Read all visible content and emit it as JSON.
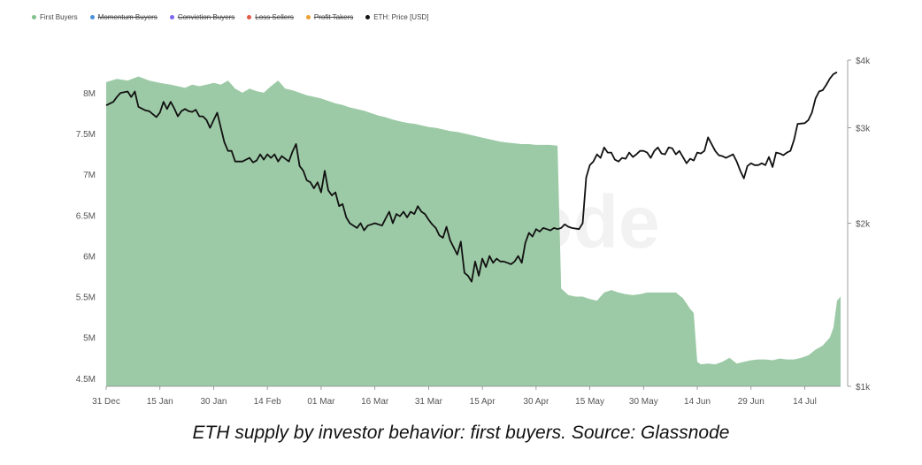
{
  "legend": [
    {
      "label": "First Buyers",
      "color": "#7fc08d",
      "visible": true
    },
    {
      "label": "Momentum Buyers",
      "color": "#4a90d9",
      "visible": false
    },
    {
      "label": "Conviction Buyers",
      "color": "#7b68ee",
      "visible": false
    },
    {
      "label": "Loss Sellers",
      "color": "#e05a47",
      "visible": false
    },
    {
      "label": "Profit Takers",
      "color": "#f0a030",
      "visible": false
    },
    {
      "label": "ETH: Price [USD]",
      "color": "#111111",
      "visible": true
    }
  ],
  "watermark": "glassnode",
  "caption": "ETH supply by investor behavior: first buyers. Source: Glassnode",
  "chart_data": {
    "type": "area",
    "x_ticks": [
      "31 Dec",
      "15 Jan",
      "30 Jan",
      "14 Feb",
      "01 Mar",
      "16 Mar",
      "31 Mar",
      "15 Apr",
      "30 Apr",
      "15 May",
      "30 May",
      "14 Jun",
      "29 Jun",
      "14 Jul"
    ],
    "y_left_ticks": [
      {
        "value": 4.5,
        "label": "4.5M"
      },
      {
        "value": 5,
        "label": "5M"
      },
      {
        "value": 5.5,
        "label": "5.5M"
      },
      {
        "value": 6,
        "label": "6M"
      },
      {
        "value": 6.5,
        "label": "6.5M"
      },
      {
        "value": 7,
        "label": "7M"
      },
      {
        "value": 7.5,
        "label": "7.5M"
      },
      {
        "value": 8,
        "label": "8M"
      }
    ],
    "y_right_ticks": [
      {
        "value": 1000,
        "label": "$1k"
      },
      {
        "value": 2000,
        "label": "$2k"
      },
      {
        "value": 3000,
        "label": "$3k"
      },
      {
        "value": 4000,
        "label": "$4k"
      }
    ],
    "y_left_range": [
      4.4,
      8.4
    ],
    "y_right_range": [
      1000,
      4000
    ],
    "y_right_scale": "log",
    "x_range_days": [
      0,
      205
    ],
    "grid": false,
    "legend_position": "top-left",
    "series": [
      {
        "name": "First Buyers",
        "kind": "area",
        "color": "#9dcaa6",
        "points": [
          [
            0,
            8.13
          ],
          [
            3,
            8.17
          ],
          [
            6,
            8.15
          ],
          [
            9,
            8.2
          ],
          [
            12,
            8.15
          ],
          [
            15,
            8.12
          ],
          [
            18,
            8.1
          ],
          [
            20,
            8.08
          ],
          [
            22,
            8.06
          ],
          [
            24,
            8.1
          ],
          [
            26,
            8.08
          ],
          [
            28,
            8.1
          ],
          [
            30,
            8.12
          ],
          [
            32,
            8.1
          ],
          [
            34,
            8.15
          ],
          [
            36,
            8.05
          ],
          [
            38,
            8.0
          ],
          [
            40,
            8.05
          ],
          [
            42,
            8.02
          ],
          [
            44,
            8.0
          ],
          [
            46,
            8.08
          ],
          [
            48,
            8.15
          ],
          [
            50,
            8.05
          ],
          [
            52,
            8.03
          ],
          [
            54,
            8.0
          ],
          [
            56,
            7.97
          ],
          [
            58,
            7.95
          ],
          [
            60,
            7.93
          ],
          [
            62,
            7.9
          ],
          [
            64,
            7.87
          ],
          [
            66,
            7.85
          ],
          [
            68,
            7.82
          ],
          [
            70,
            7.8
          ],
          [
            72,
            7.78
          ],
          [
            74,
            7.75
          ],
          [
            76,
            7.72
          ],
          [
            78,
            7.7
          ],
          [
            80,
            7.67
          ],
          [
            82,
            7.65
          ],
          [
            84,
            7.63
          ],
          [
            86,
            7.62
          ],
          [
            88,
            7.6
          ],
          [
            90,
            7.58
          ],
          [
            92,
            7.57
          ],
          [
            94,
            7.55
          ],
          [
            96,
            7.53
          ],
          [
            98,
            7.52
          ],
          [
            100,
            7.5
          ],
          [
            102,
            7.48
          ],
          [
            104,
            7.46
          ],
          [
            106,
            7.44
          ],
          [
            108,
            7.42
          ],
          [
            110,
            7.4
          ],
          [
            112,
            7.39
          ],
          [
            114,
            7.38
          ],
          [
            116,
            7.37
          ],
          [
            118,
            7.37
          ],
          [
            120,
            7.36
          ],
          [
            122,
            7.36
          ],
          [
            124,
            7.36
          ],
          [
            126,
            7.35
          ],
          [
            127,
            5.6
          ],
          [
            129,
            5.52
          ],
          [
            131,
            5.5
          ],
          [
            133,
            5.5
          ],
          [
            135,
            5.47
          ],
          [
            137,
            5.45
          ],
          [
            139,
            5.55
          ],
          [
            141,
            5.58
          ],
          [
            143,
            5.55
          ],
          [
            145,
            5.53
          ],
          [
            147,
            5.52
          ],
          [
            149,
            5.53
          ],
          [
            151,
            5.55
          ],
          [
            153,
            5.55
          ],
          [
            155,
            5.55
          ],
          [
            157,
            5.55
          ],
          [
            159,
            5.55
          ],
          [
            161,
            5.48
          ],
          [
            163,
            5.35
          ],
          [
            164,
            5.3
          ],
          [
            165,
            4.7
          ],
          [
            166,
            4.67
          ],
          [
            168,
            4.68
          ],
          [
            170,
            4.67
          ],
          [
            172,
            4.7
          ],
          [
            174,
            4.75
          ],
          [
            176,
            4.68
          ],
          [
            178,
            4.7
          ],
          [
            180,
            4.72
          ],
          [
            182,
            4.73
          ],
          [
            184,
            4.73
          ],
          [
            186,
            4.72
          ],
          [
            188,
            4.74
          ],
          [
            190,
            4.73
          ],
          [
            192,
            4.73
          ],
          [
            194,
            4.75
          ],
          [
            196,
            4.78
          ],
          [
            198,
            4.85
          ],
          [
            200,
            4.9
          ],
          [
            202,
            5.0
          ],
          [
            203,
            5.12
          ],
          [
            204,
            5.45
          ],
          [
            205,
            5.5
          ]
        ]
      },
      {
        "name": "ETH: Price [USD]",
        "kind": "line",
        "color": "#111111",
        "points": [
          [
            0,
            3300
          ],
          [
            2,
            3350
          ],
          [
            3,
            3420
          ],
          [
            4,
            3480
          ],
          [
            6,
            3500
          ],
          [
            7,
            3420
          ],
          [
            8,
            3500
          ],
          [
            9,
            3280
          ],
          [
            11,
            3230
          ],
          [
            12,
            3220
          ],
          [
            13,
            3180
          ],
          [
            14,
            3140
          ],
          [
            15,
            3200
          ],
          [
            16,
            3350
          ],
          [
            17,
            3250
          ],
          [
            18,
            3350
          ],
          [
            19,
            3260
          ],
          [
            20,
            3150
          ],
          [
            21,
            3220
          ],
          [
            22,
            3250
          ],
          [
            23,
            3220
          ],
          [
            24,
            3210
          ],
          [
            25,
            3240
          ],
          [
            26,
            3150
          ],
          [
            27,
            3150
          ],
          [
            28,
            3100
          ],
          [
            29,
            3000
          ],
          [
            30,
            3100
          ],
          [
            31,
            3200
          ],
          [
            32,
            3000
          ],
          [
            33,
            2820
          ],
          [
            34,
            2720
          ],
          [
            35,
            2720
          ],
          [
            36,
            2600
          ],
          [
            38,
            2600
          ],
          [
            40,
            2640
          ],
          [
            41,
            2590
          ],
          [
            42,
            2610
          ],
          [
            43,
            2680
          ],
          [
            44,
            2620
          ],
          [
            45,
            2680
          ],
          [
            46,
            2640
          ],
          [
            47,
            2680
          ],
          [
            48,
            2600
          ],
          [
            49,
            2660
          ],
          [
            51,
            2600
          ],
          [
            52,
            2710
          ],
          [
            53,
            2800
          ],
          [
            54,
            2550
          ],
          [
            55,
            2500
          ],
          [
            56,
            2400
          ],
          [
            57,
            2380
          ],
          [
            58,
            2320
          ],
          [
            59,
            2380
          ],
          [
            60,
            2280
          ],
          [
            61,
            2500
          ],
          [
            62,
            2300
          ],
          [
            63,
            2250
          ],
          [
            64,
            2280
          ],
          [
            65,
            2150
          ],
          [
            66,
            2170
          ],
          [
            67,
            2050
          ],
          [
            68,
            2000
          ],
          [
            70,
            1960
          ],
          [
            71,
            2000
          ],
          [
            72,
            1940
          ],
          [
            73,
            1980
          ],
          [
            75,
            2000
          ],
          [
            77,
            1980
          ],
          [
            78,
            2040
          ],
          [
            79,
            2100
          ],
          [
            80,
            2000
          ],
          [
            81,
            2080
          ],
          [
            82,
            2060
          ],
          [
            83,
            2100
          ],
          [
            84,
            2050
          ],
          [
            85,
            2100
          ],
          [
            86,
            2080
          ],
          [
            87,
            2150
          ],
          [
            88,
            2100
          ],
          [
            89,
            2080
          ],
          [
            90,
            2030
          ],
          [
            91,
            1990
          ],
          [
            92,
            1960
          ],
          [
            93,
            1900
          ],
          [
            94,
            1880
          ],
          [
            95,
            1970
          ],
          [
            96,
            1860
          ],
          [
            98,
            1750
          ],
          [
            99,
            1850
          ],
          [
            100,
            1620
          ],
          [
            101,
            1600
          ],
          [
            102,
            1560
          ],
          [
            103,
            1700
          ],
          [
            104,
            1600
          ],
          [
            105,
            1720
          ],
          [
            106,
            1660
          ],
          [
            107,
            1740
          ],
          [
            108,
            1690
          ],
          [
            109,
            1720
          ],
          [
            110,
            1700
          ],
          [
            111,
            1700
          ],
          [
            112,
            1690
          ],
          [
            113,
            1680
          ],
          [
            114,
            1700
          ],
          [
            115,
            1740
          ],
          [
            116,
            1690
          ],
          [
            117,
            1840
          ],
          [
            118,
            1920
          ],
          [
            119,
            1890
          ],
          [
            120,
            1950
          ],
          [
            121,
            1930
          ],
          [
            122,
            1960
          ],
          [
            123,
            1950
          ],
          [
            124,
            1940
          ],
          [
            125,
            1960
          ],
          [
            126,
            1950
          ],
          [
            127,
            1960
          ],
          [
            128,
            1990
          ],
          [
            129,
            1970
          ],
          [
            130,
            1960
          ],
          [
            132,
            1950
          ],
          [
            133,
            2000
          ],
          [
            134,
            2430
          ],
          [
            135,
            2560
          ],
          [
            136,
            2600
          ],
          [
            137,
            2680
          ],
          [
            138,
            2640
          ],
          [
            139,
            2760
          ],
          [
            140,
            2700
          ],
          [
            141,
            2700
          ],
          [
            142,
            2620
          ],
          [
            143,
            2600
          ],
          [
            144,
            2640
          ],
          [
            145,
            2630
          ],
          [
            146,
            2700
          ],
          [
            147,
            2650
          ],
          [
            148,
            2680
          ],
          [
            149,
            2720
          ],
          [
            150,
            2720
          ],
          [
            151,
            2700
          ],
          [
            152,
            2640
          ],
          [
            153,
            2720
          ],
          [
            154,
            2760
          ],
          [
            155,
            2690
          ],
          [
            156,
            2680
          ],
          [
            157,
            2760
          ],
          [
            158,
            2750
          ],
          [
            159,
            2680
          ],
          [
            160,
            2720
          ],
          [
            162,
            2580
          ],
          [
            163,
            2630
          ],
          [
            164,
            2610
          ],
          [
            165,
            2700
          ],
          [
            166,
            2690
          ],
          [
            167,
            2720
          ],
          [
            168,
            2880
          ],
          [
            169,
            2800
          ],
          [
            170,
            2720
          ],
          [
            171,
            2670
          ],
          [
            172,
            2660
          ],
          [
            173,
            2640
          ],
          [
            174,
            2660
          ],
          [
            175,
            2680
          ],
          [
            176,
            2600
          ],
          [
            177,
            2500
          ],
          [
            178,
            2420
          ],
          [
            179,
            2550
          ],
          [
            180,
            2580
          ],
          [
            181,
            2560
          ],
          [
            182,
            2560
          ],
          [
            183,
            2580
          ],
          [
            184,
            2560
          ],
          [
            185,
            2650
          ],
          [
            186,
            2540
          ],
          [
            187,
            2700
          ],
          [
            188,
            2690
          ],
          [
            189,
            2670
          ],
          [
            190,
            2700
          ],
          [
            191,
            2720
          ],
          [
            192,
            2850
          ],
          [
            193,
            3050
          ],
          [
            195,
            3060
          ],
          [
            196,
            3100
          ],
          [
            197,
            3200
          ],
          [
            198,
            3400
          ],
          [
            199,
            3500
          ],
          [
            200,
            3520
          ],
          [
            201,
            3600
          ],
          [
            202,
            3700
          ],
          [
            203,
            3770
          ],
          [
            204,
            3800
          ]
        ]
      }
    ]
  }
}
